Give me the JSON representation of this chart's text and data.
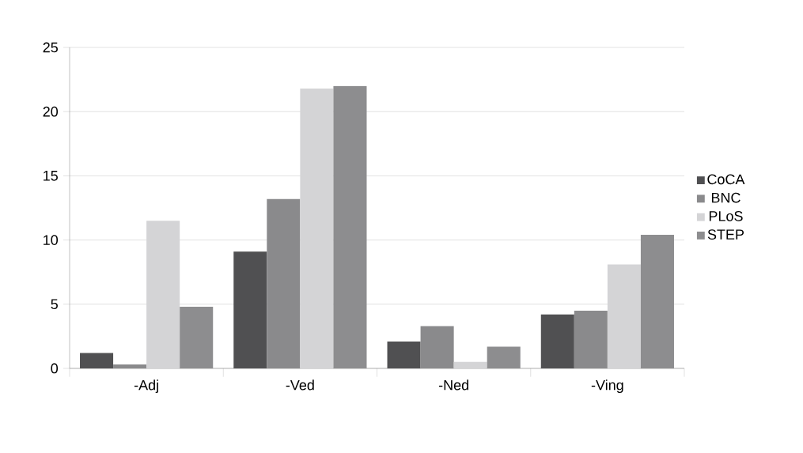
{
  "chart_data": {
    "type": "bar",
    "categories": [
      "-Adj",
      "-Ved",
      "-Ned",
      "-Ving"
    ],
    "series": [
      {
        "name": "CoCA",
        "color": "#505052",
        "values": [
          1.2,
          9.1,
          2.1,
          4.2
        ]
      },
      {
        "name": "BNC",
        "color": "#8a8a8c",
        "values": [
          0.3,
          13.2,
          3.3,
          4.5
        ]
      },
      {
        "name": "PLoS",
        "color": "#d4d4d6",
        "values": [
          11.5,
          21.8,
          0.5,
          8.1
        ]
      },
      {
        "name": "STEP",
        "color": "#8d8d8f",
        "values": [
          4.8,
          22.0,
          1.7,
          10.4
        ]
      }
    ],
    "ylim": [
      0,
      25
    ],
    "yticks": [
      0,
      5,
      10,
      15,
      20,
      25
    ],
    "grid": "y",
    "legend": "right"
  }
}
